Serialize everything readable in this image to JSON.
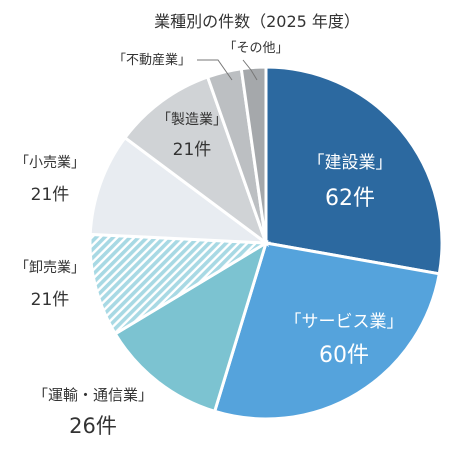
{
  "chart_data": {
    "type": "pie",
    "title": "業種別の件数（2025 年度）",
    "unit": "件",
    "slices": [
      {
        "label": "「建設業」",
        "value": 62,
        "color": "#2c69a0",
        "label_color": "#ffffff",
        "value_text": "62件"
      },
      {
        "label": "「サービス業」",
        "value": 60,
        "color": "#55a3dc",
        "label_color": "#ffffff",
        "value_text": "60件"
      },
      {
        "label": "「運輸・通信業」",
        "value": 26,
        "color": "#7cc3d1",
        "label_color": "#333333",
        "value_text": "26件"
      },
      {
        "label": "「卸売業」",
        "value": 21,
        "color": "#a8d9e4",
        "pattern": "hatch",
        "label_color": "#333333",
        "value_text": "21件"
      },
      {
        "label": "「小売業」",
        "value": 21,
        "color": "#e8ecf1",
        "label_color": "#333333",
        "value_text": "21件"
      },
      {
        "label": "「製造業」",
        "value": 21,
        "color": "#d0d3d6",
        "label_color": "#333333",
        "value_text": "21件"
      },
      {
        "label": "「不動産業」",
        "value": 7,
        "color": "#bcbfc2",
        "label_color": "#333333",
        "value_text": ""
      },
      {
        "label": "「その他」",
        "value": 5,
        "color": "#a5a8ab",
        "label_color": "#333333",
        "value_text": ""
      }
    ]
  }
}
